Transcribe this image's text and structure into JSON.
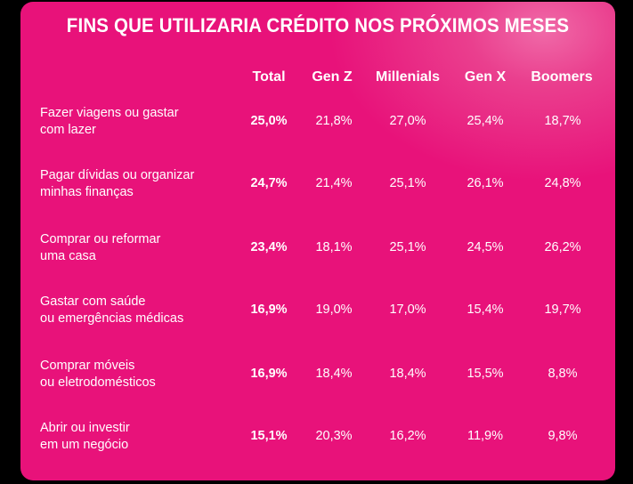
{
  "chart_data": {
    "type": "table",
    "title": "FINS QUE UTILIZARIA CRÉDITO NOS PRÓXIMOS MESES",
    "columns": [
      "Total",
      "Gen Z",
      "Millenials",
      "Gen X",
      "Boomers"
    ],
    "rows": [
      {
        "label_lines": [
          "Fazer viagens ou gastar",
          "com lazer"
        ],
        "values": [
          "25,0%",
          "21,8%",
          "27,0%",
          "25,4%",
          "18,7%"
        ]
      },
      {
        "label_lines": [
          "Pagar dívidas ou organizar",
          "minhas finanças"
        ],
        "values": [
          "24,7%",
          "21,4%",
          "25,1%",
          "26,1%",
          "24,8%"
        ]
      },
      {
        "label_lines": [
          "Comprar ou reformar",
          "uma casa"
        ],
        "values": [
          "23,4%",
          "18,1%",
          "25,1%",
          "24,5%",
          "26,2%"
        ]
      },
      {
        "label_lines": [
          "Gastar com saúde",
          "ou emergências médicas"
        ],
        "values": [
          "16,9%",
          "19,0%",
          "17,0%",
          "15,4%",
          "19,7%"
        ]
      },
      {
        "label_lines": [
          "Comprar móveis",
          "ou eletrodomésticos"
        ],
        "values": [
          "16,9%",
          "18,4%",
          "18,4%",
          "15,5%",
          "8,8%"
        ]
      },
      {
        "label_lines": [
          "Abrir ou investir",
          "em um negócio"
        ],
        "values": [
          "15,1%",
          "20,3%",
          "16,2%",
          "11,9%",
          "9,8%"
        ]
      }
    ]
  },
  "colors": {
    "background": "#e8127a",
    "text": "#ffffff"
  }
}
